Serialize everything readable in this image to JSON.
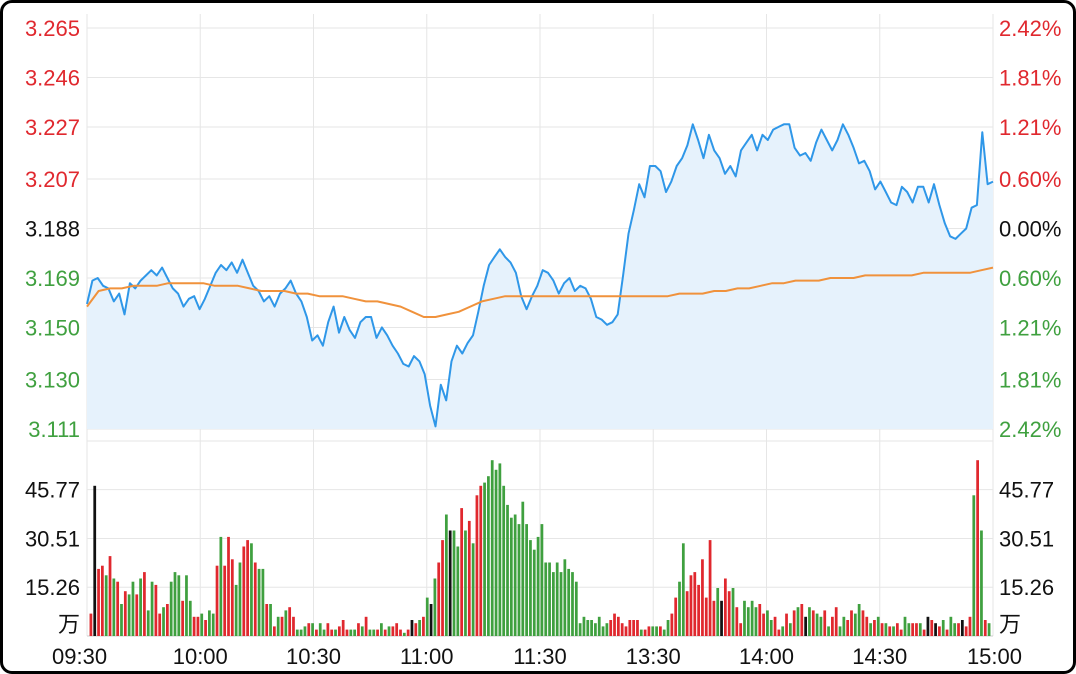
{
  "chart_data": {
    "type": "line",
    "price_axis": {
      "left_ticks": [
        "3.265",
        "3.246",
        "3.227",
        "3.207",
        "3.188",
        "3.169",
        "3.150",
        "3.130",
        "3.111"
      ],
      "right_ticks": [
        "2.42%",
        "1.81%",
        "1.21%",
        "0.60%",
        "0.00%",
        "0.60%",
        "1.21%",
        "1.81%",
        "2.42%"
      ],
      "tick_values": [
        3.265,
        3.246,
        3.227,
        3.207,
        3.188,
        3.169,
        3.15,
        3.13,
        3.111
      ],
      "ylim": [
        3.111,
        3.265
      ],
      "baseline": 3.188
    },
    "volume_axis": {
      "ticks": [
        "45.77",
        "30.51",
        "15.26"
      ],
      "tick_values": [
        45.77,
        30.51,
        15.26
      ],
      "unit": "万",
      "ylim": [
        0,
        61
      ]
    },
    "x_labels": [
      "09:30",
      "10:00",
      "10:30",
      "11:00",
      "11:30",
      "13:30",
      "14:00",
      "14:30",
      "15:00"
    ],
    "series": [
      {
        "key": "price",
        "color": "#2f97e8",
        "fill": "#e6f2fc",
        "values": [
          3.159,
          3.168,
          3.169,
          3.166,
          3.165,
          3.16,
          3.163,
          3.155,
          3.167,
          3.165,
          3.168,
          3.17,
          3.172,
          3.17,
          3.173,
          3.169,
          3.165,
          3.163,
          3.158,
          3.161,
          3.162,
          3.157,
          3.161,
          3.166,
          3.171,
          3.174,
          3.172,
          3.175,
          3.171,
          3.176,
          3.171,
          3.166,
          3.164,
          3.16,
          3.162,
          3.158,
          3.163,
          3.165,
          3.168,
          3.163,
          3.16,
          3.154,
          3.145,
          3.147,
          3.143,
          3.152,
          3.158,
          3.148,
          3.154,
          3.149,
          3.146,
          3.152,
          3.154,
          3.154,
          3.146,
          3.15,
          3.147,
          3.143,
          3.14,
          3.136,
          3.135,
          3.139,
          3.137,
          3.132,
          3.12,
          3.112,
          3.128,
          3.122,
          3.137,
          3.143,
          3.14,
          3.144,
          3.147,
          3.156,
          3.166,
          3.174,
          3.177,
          3.18,
          3.177,
          3.175,
          3.171,
          3.162,
          3.157,
          3.162,
          3.166,
          3.172,
          3.171,
          3.168,
          3.163,
          3.167,
          3.169,
          3.164,
          3.166,
          3.165,
          3.161,
          3.154,
          3.153,
          3.151,
          3.152,
          3.155,
          3.17,
          3.186,
          3.195,
          3.205,
          3.2,
          3.212,
          3.212,
          3.21,
          3.202,
          3.206,
          3.212,
          3.215,
          3.22,
          3.228,
          3.222,
          3.215,
          3.224,
          3.218,
          3.215,
          3.209,
          3.212,
          3.208,
          3.218,
          3.221,
          3.224,
          3.218,
          3.224,
          3.222,
          3.226,
          3.227,
          3.228,
          3.228,
          3.219,
          3.216,
          3.217,
          3.214,
          3.221,
          3.226,
          3.222,
          3.218,
          3.222,
          3.228,
          3.224,
          3.219,
          3.213,
          3.214,
          3.21,
          3.203,
          3.206,
          3.202,
          3.198,
          3.197,
          3.204,
          3.202,
          3.198,
          3.204,
          3.204,
          3.198,
          3.205,
          3.197,
          3.19,
          3.185,
          3.184,
          3.186,
          3.188,
          3.196,
          3.197,
          3.225,
          3.205,
          3.206
        ]
      },
      {
        "key": "average",
        "color": "#f0923c",
        "values": [
          3.158,
          3.164,
          3.165,
          3.165,
          3.166,
          3.166,
          3.166,
          3.167,
          3.167,
          3.167,
          3.167,
          3.166,
          3.166,
          3.166,
          3.165,
          3.164,
          3.164,
          3.164,
          3.163,
          3.163,
          3.162,
          3.162,
          3.162,
          3.161,
          3.16,
          3.16,
          3.159,
          3.158,
          3.156,
          3.154,
          3.154,
          3.155,
          3.156,
          3.158,
          3.16,
          3.161,
          3.162,
          3.162,
          3.162,
          3.162,
          3.162,
          3.162,
          3.162,
          3.162,
          3.162,
          3.162,
          3.162,
          3.162,
          3.162,
          3.162,
          3.162,
          3.163,
          3.163,
          3.163,
          3.164,
          3.164,
          3.165,
          3.165,
          3.166,
          3.167,
          3.167,
          3.168,
          3.168,
          3.168,
          3.169,
          3.169,
          3.169,
          3.17,
          3.17,
          3.17,
          3.17,
          3.17,
          3.171,
          3.171,
          3.171,
          3.171,
          3.171,
          3.172,
          3.173
        ]
      }
    ],
    "volume_bars": {
      "values": [
        7,
        47,
        21,
        22,
        19,
        25,
        18,
        17,
        10,
        14,
        13,
        17,
        13,
        18,
        20,
        8,
        17,
        16,
        7,
        9,
        10,
        17,
        20,
        19,
        11,
        19,
        11,
        6,
        6,
        7,
        5,
        8,
        7,
        22,
        31,
        22,
        31,
        24,
        16,
        23,
        28,
        30,
        29,
        23,
        21,
        21,
        10,
        10,
        3,
        6,
        6,
        8,
        9,
        6,
        2,
        2,
        3,
        4,
        4,
        2,
        4,
        2,
        4,
        2,
        2,
        3,
        5,
        2,
        2,
        2,
        4,
        3,
        6,
        2,
        2,
        2,
        4,
        2,
        3,
        3,
        4,
        2,
        1,
        2,
        5,
        4,
        5,
        6,
        12,
        10,
        18,
        23,
        30,
        38,
        33,
        33,
        28,
        40,
        33,
        36,
        29,
        44,
        47,
        48,
        50,
        55,
        52,
        54,
        47,
        41,
        37,
        38,
        35,
        42,
        35,
        30,
        27,
        31,
        35,
        23,
        23,
        20,
        23,
        20,
        24,
        21,
        20,
        17,
        4,
        6,
        5,
        5,
        4,
        6,
        3,
        4,
        5,
        7,
        6,
        4,
        3,
        5,
        5,
        5,
        2,
        2,
        3,
        3,
        3,
        3,
        2,
        5,
        7,
        12,
        17,
        29,
        14,
        19,
        20,
        16,
        24,
        12,
        30,
        11,
        15,
        11,
        18,
        14,
        15,
        9,
        4,
        11,
        9,
        11,
        9,
        10,
        7,
        8,
        5,
        6,
        2,
        3,
        7,
        4,
        8,
        9,
        10,
        6,
        9,
        8,
        7,
        6,
        8,
        3,
        6,
        9,
        3,
        6,
        5,
        8,
        7,
        10,
        8,
        6,
        4,
        5,
        6,
        4,
        4,
        3,
        3,
        4,
        2,
        6,
        4,
        4,
        4,
        4,
        2,
        6,
        5,
        4,
        3,
        5,
        2,
        6,
        4,
        4,
        5,
        3,
        6,
        44,
        55,
        33,
        5,
        4
      ],
      "colors": [
        "r",
        "k",
        "r",
        "r",
        "g",
        "r",
        "g",
        "r",
        "g",
        "r",
        "g",
        "g",
        "r",
        "g",
        "r",
        "g",
        "g",
        "r",
        "r",
        "g",
        "r",
        "g",
        "g",
        "g",
        "r",
        "g",
        "g",
        "r",
        "r",
        "g",
        "r",
        "g",
        "g",
        "r",
        "g",
        "r",
        "r",
        "r",
        "g",
        "g",
        "r",
        "r",
        "g",
        "r",
        "g",
        "g",
        "r",
        "g",
        "r",
        "g",
        "r",
        "g",
        "r",
        "r",
        "g",
        "g",
        "g",
        "r",
        "g",
        "r",
        "g",
        "g",
        "r",
        "r",
        "g",
        "r",
        "r",
        "r",
        "g",
        "g",
        "r",
        "g",
        "r",
        "g",
        "g",
        "r",
        "g",
        "r",
        "g",
        "r",
        "r",
        "r",
        "g",
        "r",
        "k",
        "r",
        "g",
        "r",
        "g",
        "k",
        "g",
        "r",
        "r",
        "g",
        "k",
        "g",
        "g",
        "r",
        "g",
        "r",
        "g",
        "r",
        "r",
        "g",
        "g",
        "g",
        "g",
        "g",
        "g",
        "g",
        "g",
        "g",
        "g",
        "g",
        "g",
        "g",
        "g",
        "g",
        "g",
        "g",
        "g",
        "g",
        "g",
        "g",
        "g",
        "g",
        "g",
        "g",
        "g",
        "g",
        "g",
        "g",
        "g",
        "g",
        "g",
        "g",
        "r",
        "r",
        "r",
        "r",
        "r",
        "r",
        "r",
        "r",
        "g",
        "r",
        "r",
        "g",
        "g",
        "r",
        "g",
        "g",
        "r",
        "r",
        "g",
        "g",
        "r",
        "r",
        "r",
        "r",
        "r",
        "r",
        "r",
        "r",
        "g",
        "k",
        "r",
        "r",
        "g",
        "r",
        "r",
        "g",
        "g",
        "g",
        "g",
        "r",
        "r",
        "g",
        "g",
        "r",
        "r",
        "g",
        "r",
        "g",
        "r",
        "g",
        "r",
        "k",
        "g",
        "r",
        "g",
        "g",
        "r",
        "g",
        "r",
        "r",
        "g",
        "g",
        "r",
        "r",
        "g",
        "g",
        "r",
        "r",
        "g",
        "r",
        "g",
        "r",
        "g",
        "r",
        "g",
        "r",
        "r",
        "g",
        "g",
        "r",
        "r",
        "g",
        "r",
        "k",
        "r",
        "k",
        "r",
        "g",
        "r",
        "g",
        "g",
        "r",
        "k",
        "r",
        "r",
        "g",
        "r",
        "g",
        "r",
        "g"
      ]
    }
  }
}
